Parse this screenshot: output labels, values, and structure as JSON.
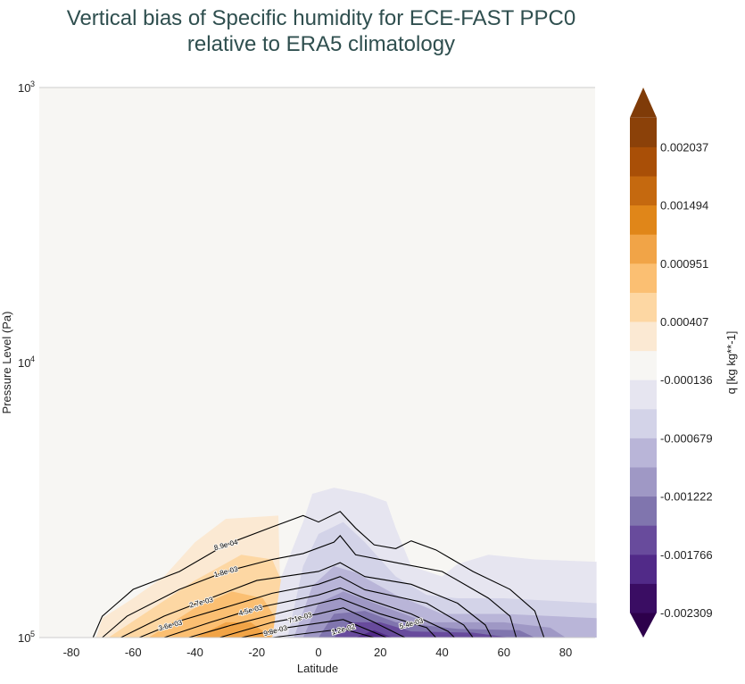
{
  "chart_data": {
    "type": "contour",
    "title_line1": "Vertical bias of Specific humidity for ECE-FAST PPC0",
    "title_line2": "relative to ERA5 climatology",
    "xlabel": "Latitude",
    "ylabel": "Pressure Level (Pa)",
    "xlim": [
      -90,
      90
    ],
    "ylim": [
      100000,
      1000
    ],
    "yscale": "log",
    "x_ticks": [
      -80,
      -60,
      -40,
      -20,
      0,
      20,
      40,
      60,
      80
    ],
    "y_ticks": [
      {
        "base": "10",
        "exp": "3",
        "value": 1000
      },
      {
        "base": "10",
        "exp": "4",
        "value": 10000
      },
      {
        "base": "10",
        "exp": "5",
        "value": 100000
      }
    ],
    "colorbar": {
      "label": "q [kg kg**-1]",
      "extend": "both",
      "ticks": [
        "-0.002309",
        "-0.001766",
        "-0.001222",
        "-0.000679",
        "-0.000136",
        "0.000407",
        "0.000951",
        "0.001494",
        "0.002037"
      ],
      "colors": [
        "#2d004b",
        "#3a0d63",
        "#512a88",
        "#684b9c",
        "#8075ae",
        "#9f98c5",
        "#b9b5d8",
        "#d3d3e8",
        "#e6e5f0",
        "#f7f6f3",
        "#fbe9d3",
        "#fdd7a3",
        "#fbbf72",
        "#f1a447",
        "#e08619",
        "#c5690f",
        "#a94f07",
        "#8b4109",
        "#7f3b08"
      ]
    },
    "filled_regions": [
      {
        "color": "#fbe9d3",
        "points": [
          [
            -72,
            100000
          ],
          [
            -70,
            85000
          ],
          [
            -60,
            72000
          ],
          [
            -50,
            60000
          ],
          [
            -40,
            45000
          ],
          [
            -30,
            37000
          ],
          [
            -13,
            36000
          ],
          [
            -12,
            100000
          ]
        ]
      },
      {
        "color": "#fdd7a3",
        "points": [
          [
            -68,
            100000
          ],
          [
            -55,
            80000
          ],
          [
            -40,
            62000
          ],
          [
            -25,
            50000
          ],
          [
            -15,
            52000
          ],
          [
            -10,
            70000
          ],
          [
            -8,
            100000
          ]
        ]
      },
      {
        "color": "#fbbf72",
        "points": [
          [
            -55,
            100000
          ],
          [
            -40,
            78000
          ],
          [
            -28,
            68000
          ],
          [
            -18,
            72000
          ],
          [
            -10,
            100000
          ]
        ]
      },
      {
        "color": "#f1a447",
        "points": [
          [
            -40,
            100000
          ],
          [
            -30,
            88000
          ],
          [
            -22,
            88000
          ],
          [
            -15,
            100000
          ]
        ]
      },
      {
        "color": "#e6e5f0",
        "points": [
          [
            -15,
            100000
          ],
          [
            -12,
            60000
          ],
          [
            -5,
            38000
          ],
          [
            -2,
            30000
          ],
          [
            5,
            28500
          ],
          [
            15,
            30000
          ],
          [
            22,
            32000
          ],
          [
            25,
            40000
          ],
          [
            30,
            55000
          ],
          [
            40,
            60000
          ],
          [
            45,
            54000
          ],
          [
            55,
            50000
          ],
          [
            70,
            52000
          ],
          [
            90,
            53000
          ],
          [
            90,
            100000
          ]
        ]
      },
      {
        "color": "#d3d3e8",
        "points": [
          [
            -10,
            100000
          ],
          [
            -5,
            55000
          ],
          [
            0,
            42000
          ],
          [
            8,
            38000
          ],
          [
            15,
            45000
          ],
          [
            25,
            60000
          ],
          [
            35,
            70000
          ],
          [
            45,
            72000
          ],
          [
            60,
            72000
          ],
          [
            90,
            75000
          ],
          [
            90,
            100000
          ]
        ]
      },
      {
        "color": "#b9b5d8",
        "points": [
          [
            -8,
            100000
          ],
          [
            -2,
            65000
          ],
          [
            5,
            55000
          ],
          [
            12,
            58000
          ],
          [
            25,
            70000
          ],
          [
            40,
            82000
          ],
          [
            60,
            82000
          ],
          [
            90,
            85000
          ],
          [
            90,
            100000
          ]
        ]
      },
      {
        "color": "#9f98c5",
        "points": [
          [
            -5,
            100000
          ],
          [
            0,
            75000
          ],
          [
            8,
            68000
          ],
          [
            18,
            75000
          ],
          [
            35,
            88000
          ],
          [
            60,
            88000
          ],
          [
            75,
            92000
          ],
          [
            80,
            100000
          ]
        ]
      },
      {
        "color": "#8075ae",
        "points": [
          [
            0,
            100000
          ],
          [
            5,
            82000
          ],
          [
            15,
            80000
          ],
          [
            25,
            88000
          ],
          [
            45,
            93000
          ],
          [
            65,
            94000
          ],
          [
            70,
            100000
          ]
        ]
      },
      {
        "color": "#684b9c",
        "points": [
          [
            5,
            100000
          ],
          [
            10,
            88000
          ],
          [
            20,
            88000
          ],
          [
            30,
            95000
          ],
          [
            50,
            96000
          ],
          [
            62,
            100000
          ]
        ]
      },
      {
        "color": "#512a88",
        "points": [
          [
            12,
            100000
          ],
          [
            18,
            94000
          ],
          [
            24,
            100000
          ]
        ]
      }
    ],
    "contours": [
      {
        "label": "8.9e-04",
        "label_lat": -30,
        "points": [
          [
            -73,
            100000
          ],
          [
            -70,
            83600
          ],
          [
            -60,
            66800
          ],
          [
            -45,
            57500
          ],
          [
            -30,
            45900
          ],
          [
            -15,
            39600
          ],
          [
            -5,
            36000
          ],
          [
            0,
            38000
          ],
          [
            7,
            34800
          ],
          [
            12,
            40000
          ],
          [
            18,
            46000
          ],
          [
            25,
            47500
          ],
          [
            30,
            44500
          ],
          [
            38,
            48000
          ],
          [
            50,
            57500
          ],
          [
            62,
            66800
          ],
          [
            70,
            80000
          ],
          [
            73,
            100000
          ]
        ]
      },
      {
        "label": "1.8e-03",
        "label_lat": -30,
        "points": [
          [
            -70,
            100000
          ],
          [
            -62,
            83600
          ],
          [
            -45,
            66800
          ],
          [
            -30,
            57500
          ],
          [
            -15,
            52000
          ],
          [
            -5,
            49500
          ],
          [
            5,
            45000
          ],
          [
            7,
            42600
          ],
          [
            12,
            50000
          ],
          [
            25,
            53400
          ],
          [
            40,
            57500
          ],
          [
            55,
            71900
          ],
          [
            62,
            83600
          ],
          [
            64,
            100000
          ]
        ]
      },
      {
        "label": "2.7e-03",
        "label_lat": -38,
        "points": [
          [
            -64,
            100000
          ],
          [
            -50,
            83600
          ],
          [
            -35,
            71900
          ],
          [
            -20,
            62000
          ],
          [
            0,
            57500
          ],
          [
            7,
            53400
          ],
          [
            15,
            60000
          ],
          [
            30,
            64000
          ],
          [
            45,
            75000
          ],
          [
            54,
            90000
          ],
          [
            56,
            100000
          ]
        ]
      },
      {
        "label": "3.6e-03",
        "label_lat": -48,
        "points": [
          [
            -58,
            100000
          ],
          [
            -45,
            87000
          ],
          [
            -30,
            77600
          ],
          [
            -15,
            69000
          ],
          [
            0,
            64000
          ],
          [
            7,
            60000
          ],
          [
            15,
            67000
          ],
          [
            35,
            75000
          ],
          [
            47,
            90000
          ],
          [
            50,
            100000
          ]
        ]
      },
      {
        "label": "4.5e-03",
        "label_lat": -22,
        "points": [
          [
            -50,
            100000
          ],
          [
            -35,
            88000
          ],
          [
            -20,
            78000
          ],
          [
            0,
            70000
          ],
          [
            7,
            66000
          ],
          [
            15,
            72000
          ],
          [
            30,
            82000
          ],
          [
            42,
            95000
          ],
          [
            44,
            100000
          ]
        ]
      },
      {
        "label": "5.4e-03",
        "label_lat": 30,
        "points": [
          [
            -42,
            100000
          ],
          [
            -28,
            90000
          ],
          [
            -10,
            80000
          ],
          [
            7,
            72000
          ],
          [
            20,
            82000
          ],
          [
            35,
            92000
          ],
          [
            38,
            100000
          ]
        ]
      },
      {
        "label": "7.1e-03",
        "label_lat": -6,
        "points": [
          [
            -32,
            100000
          ],
          [
            -15,
            88000
          ],
          [
            0,
            82000
          ],
          [
            8,
            78000
          ],
          [
            18,
            88000
          ],
          [
            28,
            100000
          ]
        ]
      },
      {
        "label": "9.8e-03",
        "label_lat": -14,
        "points": [
          [
            -25,
            100000
          ],
          [
            -10,
            92000
          ],
          [
            8,
            86000
          ],
          [
            22,
            100000
          ]
        ]
      },
      {
        "label": "1.2e-02",
        "label_lat": 8,
        "points": [
          [
            -15,
            100000
          ],
          [
            8,
            93000
          ],
          [
            18,
            100000
          ]
        ]
      }
    ]
  }
}
